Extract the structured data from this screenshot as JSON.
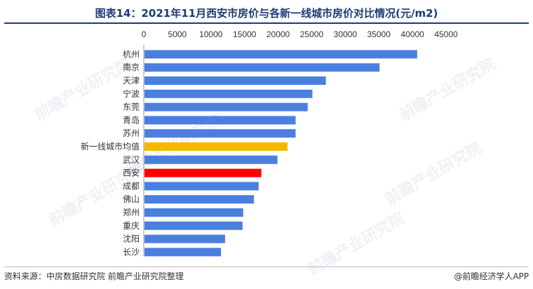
{
  "header": {
    "title": "图表14：2021年11月西安市房价与各新一线城市房价对比情况(元/m2)"
  },
  "footer": {
    "source": "资料来源：中房数据研究院 前瞻产业研究院整理",
    "credit": "@前瞻经济学人APP"
  },
  "watermark": {
    "text": "前瞻产业研究院"
  },
  "chart_data": {
    "type": "bar",
    "orientation": "horizontal",
    "title": "图表14：2021年11月西安市房价与各新一线城市房价对比情况(元/m2)",
    "xlim": [
      0,
      45000
    ],
    "x_ticks": [
      "0",
      "5000",
      "10000",
      "15000",
      "20000",
      "25000",
      "30000",
      "35000",
      "40000",
      "45000"
    ],
    "x_axis_position": "top",
    "grid": false,
    "categories": [
      "杭州",
      "南京",
      "天津",
      "宁波",
      "东莞",
      "青岛",
      "苏州",
      "新一线城市均值",
      "武汉",
      "西安",
      "成都",
      "佛山",
      "郑州",
      "重庆",
      "沈阳",
      "长沙"
    ],
    "values": [
      40600,
      35000,
      27000,
      25000,
      24300,
      22500,
      22500,
      21300,
      19800,
      17400,
      17000,
      16300,
      14700,
      14600,
      12000,
      11400
    ],
    "colors": {
      "default": "#4a7fe0",
      "新一线城市均值": "#f5b800",
      "西安": "#ff0000"
    }
  }
}
